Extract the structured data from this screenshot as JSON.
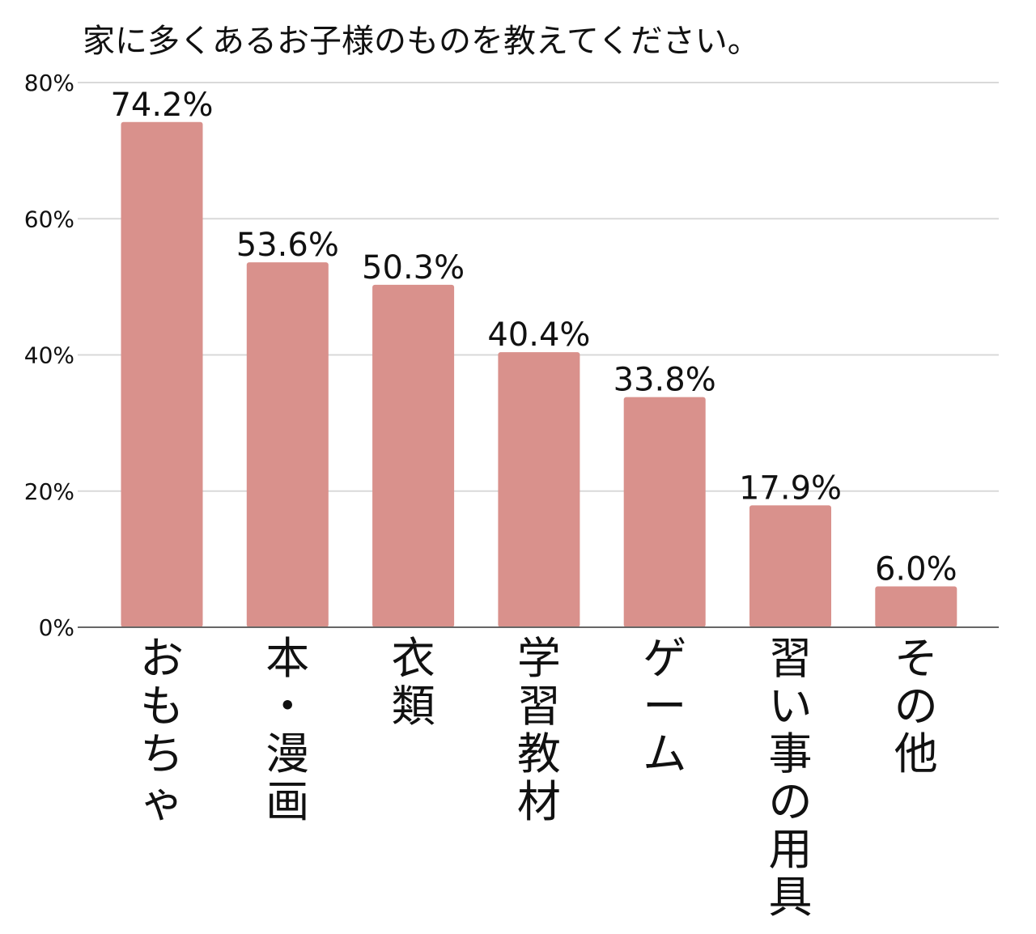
{
  "chart_data": {
    "type": "bar",
    "title": "家に多くあるお子様のものを教えてください。",
    "categories": [
      "おもちゃ",
      "本・漫画",
      "衣類",
      "学習教材",
      "ゲーム",
      "習い事の用具",
      "その他"
    ],
    "values": [
      74.2,
      53.6,
      50.3,
      40.4,
      33.8,
      17.9,
      6.0
    ],
    "data_labels": [
      "74.2%",
      "53.6%",
      "50.3%",
      "40.4%",
      "33.8%",
      "17.9%",
      "6.0%"
    ],
    "y_ticks": [
      0,
      20,
      40,
      60,
      80
    ],
    "y_tick_labels": [
      "0%",
      "20%",
      "40%",
      "60%",
      "80%"
    ],
    "ylim": [
      0,
      80
    ],
    "xlabel": "",
    "ylabel": "",
    "grid": true,
    "legend": "none",
    "bar_color": "#d9918c",
    "grid_color": "#d9d9d9",
    "axis_color": "#666666"
  }
}
